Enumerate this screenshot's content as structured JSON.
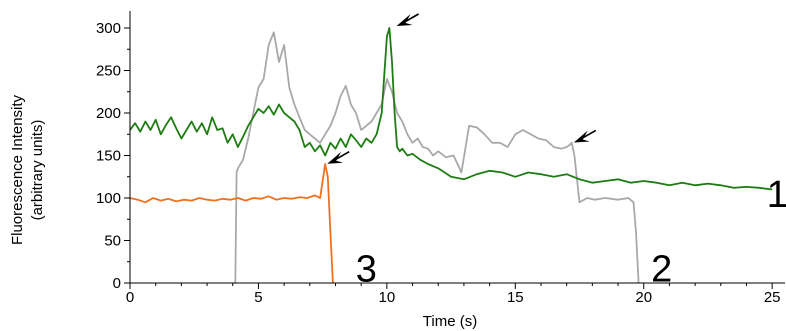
{
  "chart_data": {
    "type": "line",
    "xlabel": "Time (s)",
    "ylabel": [
      "Fluorescence Intensity",
      "(arbitrary units)"
    ],
    "xlim": [
      0,
      25.5
    ],
    "ylim": [
      0,
      320
    ],
    "xticks": [
      0,
      5,
      10,
      15,
      20,
      25
    ],
    "yticks": [
      0,
      50,
      100,
      150,
      200,
      250,
      300
    ],
    "grid": false,
    "series": [
      {
        "name": "1",
        "color": "#1e7d12",
        "x": [
          0,
          0.2,
          0.4,
          0.6,
          0.8,
          1.0,
          1.2,
          1.4,
          1.6,
          1.8,
          2.0,
          2.2,
          2.4,
          2.6,
          2.8,
          3.0,
          3.2,
          3.4,
          3.6,
          3.8,
          4.0,
          4.2,
          4.4,
          4.6,
          4.8,
          5.0,
          5.2,
          5.4,
          5.6,
          5.8,
          6.0,
          6.2,
          6.4,
          6.6,
          6.8,
          7.0,
          7.2,
          7.4,
          7.6,
          7.8,
          8.0,
          8.2,
          8.4,
          8.6,
          8.8,
          9.0,
          9.2,
          9.4,
          9.6,
          9.8,
          10.0,
          10.1,
          10.2,
          10.3,
          10.4,
          10.5,
          10.6,
          10.8,
          11.0,
          11.3,
          11.6,
          12.0,
          12.5,
          13.0,
          13.5,
          14.0,
          14.5,
          15.0,
          15.5,
          16.0,
          16.5,
          17.0,
          17.5,
          18.0,
          18.5,
          19.0,
          19.5,
          20.0,
          20.5,
          21.0,
          21.5,
          22.0,
          22.5,
          23.0,
          23.5,
          24.0,
          24.5,
          25.0
        ],
        "y": [
          180,
          188,
          178,
          190,
          180,
          192,
          175,
          186,
          195,
          182,
          170,
          180,
          190,
          178,
          188,
          175,
          195,
          180,
          182,
          165,
          175,
          160,
          172,
          185,
          195,
          205,
          200,
          208,
          198,
          210,
          200,
          195,
          190,
          180,
          160,
          165,
          155,
          162,
          150,
          165,
          158,
          170,
          160,
          175,
          168,
          160,
          170,
          165,
          175,
          200,
          290,
          300,
          260,
          200,
          160,
          155,
          158,
          150,
          152,
          145,
          140,
          135,
          125,
          122,
          128,
          132,
          130,
          125,
          130,
          128,
          125,
          128,
          122,
          118,
          120,
          122,
          118,
          120,
          118,
          115,
          118,
          115,
          117,
          115,
          112,
          113,
          112,
          110
        ]
      },
      {
        "name": "2",
        "color": "#a9a9a9",
        "x": [
          4.1,
          4.15,
          4.2,
          4.4,
          4.6,
          4.8,
          5.0,
          5.2,
          5.4,
          5.6,
          5.8,
          6.0,
          6.2,
          6.4,
          6.6,
          6.8,
          7.0,
          7.2,
          7.4,
          7.6,
          7.8,
          8.0,
          8.2,
          8.4,
          8.6,
          8.8,
          9.0,
          9.2,
          9.4,
          9.6,
          9.8,
          10.0,
          10.2,
          10.4,
          10.6,
          10.8,
          11.0,
          11.2,
          11.4,
          11.6,
          11.8,
          12.0,
          12.3,
          12.6,
          12.9,
          13.2,
          13.5,
          13.8,
          14.1,
          14.4,
          14.7,
          15.0,
          15.3,
          15.6,
          15.9,
          16.2,
          16.5,
          16.8,
          17.0,
          17.1,
          17.2,
          17.3,
          17.5,
          17.8,
          18.1,
          18.5,
          19.0,
          19.4,
          19.6,
          19.7,
          19.8
        ],
        "y": [
          0,
          130,
          135,
          145,
          170,
          200,
          230,
          240,
          280,
          295,
          260,
          280,
          230,
          210,
          195,
          180,
          175,
          170,
          165,
          175,
          185,
          200,
          220,
          232,
          210,
          200,
          180,
          185,
          190,
          200,
          210,
          240,
          225,
          200,
          190,
          175,
          165,
          170,
          160,
          158,
          150,
          155,
          148,
          150,
          130,
          185,
          183,
          175,
          165,
          165,
          160,
          175,
          180,
          175,
          170,
          168,
          160,
          158,
          160,
          162,
          165,
          150,
          95,
          100,
          98,
          100,
          98,
          100,
          95,
          60,
          0
        ]
      },
      {
        "name": "3",
        "color": "#f07020",
        "x": [
          0,
          0.3,
          0.6,
          0.9,
          1.2,
          1.5,
          1.8,
          2.1,
          2.4,
          2.7,
          3.0,
          3.3,
          3.6,
          3.9,
          4.2,
          4.5,
          4.8,
          5.1,
          5.4,
          5.7,
          6.0,
          6.3,
          6.6,
          6.9,
          7.2,
          7.4,
          7.6,
          7.7,
          7.8,
          7.9
        ],
        "y": [
          100,
          98,
          95,
          100,
          97,
          99,
          96,
          98,
          97,
          100,
          98,
          97,
          99,
          98,
          100,
          97,
          100,
          99,
          102,
          98,
          100,
          99,
          101,
          100,
          103,
          100,
          140,
          125,
          60,
          0
        ]
      }
    ],
    "annotations": {
      "arrows": [
        {
          "x": 10.3,
          "y": 300
        },
        {
          "x": 7.6,
          "y": 138
        },
        {
          "x": 17.2,
          "y": 163
        }
      ],
      "series_numbers": [
        {
          "text": "1",
          "x": 25.2,
          "y": 105
        },
        {
          "text": "2",
          "x": 20.7,
          "y": 17
        },
        {
          "text": "3",
          "x": 9.2,
          "y": 17
        }
      ]
    }
  }
}
